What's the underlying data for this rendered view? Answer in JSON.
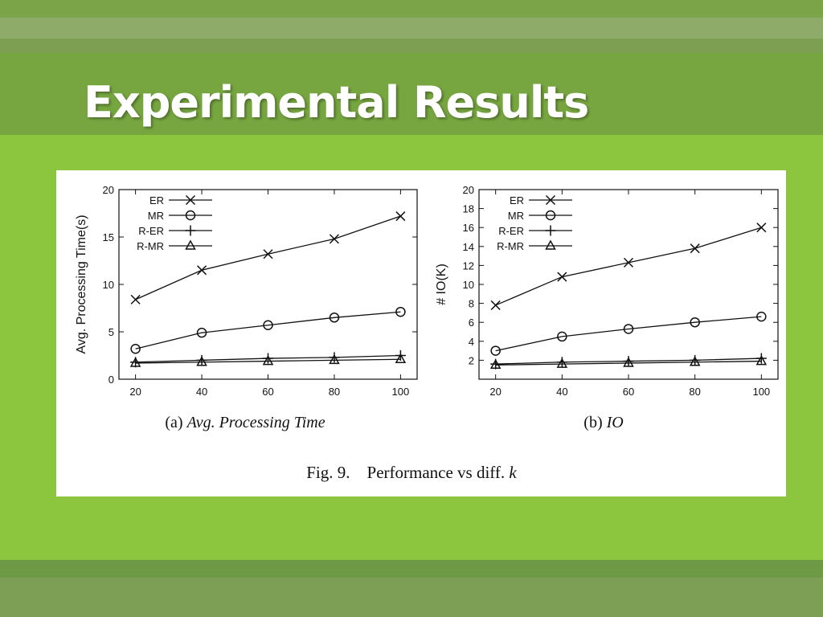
{
  "slide": {
    "title": "Experimental Results",
    "colors": {
      "background": "#8cc63f",
      "band": "#77a640",
      "title": "#ffffff"
    }
  },
  "figure": {
    "caption_label": "Fig. 9.",
    "caption_text": "Performance vs diff.",
    "caption_var": "k"
  },
  "chart_data": [
    {
      "type": "line",
      "title": "",
      "subcaption_label": "(a)",
      "subcaption_title": "Avg. Processing Time",
      "xlabel": "",
      "ylabel": "Avg. Processing Time(s)",
      "x": [
        20,
        40,
        60,
        80,
        100
      ],
      "xlim": [
        15,
        105
      ],
      "ylim": [
        0,
        20
      ],
      "yticks": [
        0,
        5,
        10,
        15,
        20
      ],
      "grid": false,
      "legend_position": "top-left",
      "series": [
        {
          "name": "ER",
          "marker": "x",
          "values": [
            8.4,
            11.5,
            13.2,
            14.8,
            17.2
          ]
        },
        {
          "name": "MR",
          "marker": "circle",
          "values": [
            3.2,
            4.9,
            5.7,
            6.5,
            7.1
          ]
        },
        {
          "name": "R-ER",
          "marker": "plus",
          "values": [
            1.8,
            2.0,
            2.2,
            2.3,
            2.5
          ]
        },
        {
          "name": "R-MR",
          "marker": "triangle",
          "values": [
            1.7,
            1.8,
            1.9,
            2.0,
            2.1
          ]
        }
      ]
    },
    {
      "type": "line",
      "title": "",
      "subcaption_label": "(b)",
      "subcaption_title": "IO",
      "xlabel": "",
      "ylabel": "# IO(K)",
      "x": [
        20,
        40,
        60,
        80,
        100
      ],
      "xlim": [
        15,
        105
      ],
      "ylim": [
        0,
        20
      ],
      "yticks": [
        2,
        4,
        6,
        8,
        10,
        12,
        14,
        16,
        18,
        20
      ],
      "grid": false,
      "legend_position": "top-left",
      "series": [
        {
          "name": "ER",
          "marker": "x",
          "values": [
            7.8,
            10.8,
            12.3,
            13.8,
            16.0
          ]
        },
        {
          "name": "MR",
          "marker": "circle",
          "values": [
            3.0,
            4.5,
            5.3,
            6.0,
            6.6
          ]
        },
        {
          "name": "R-ER",
          "marker": "plus",
          "values": [
            1.6,
            1.8,
            1.9,
            2.0,
            2.2
          ]
        },
        {
          "name": "R-MR",
          "marker": "triangle",
          "values": [
            1.5,
            1.6,
            1.7,
            1.8,
            1.9
          ]
        }
      ]
    }
  ]
}
